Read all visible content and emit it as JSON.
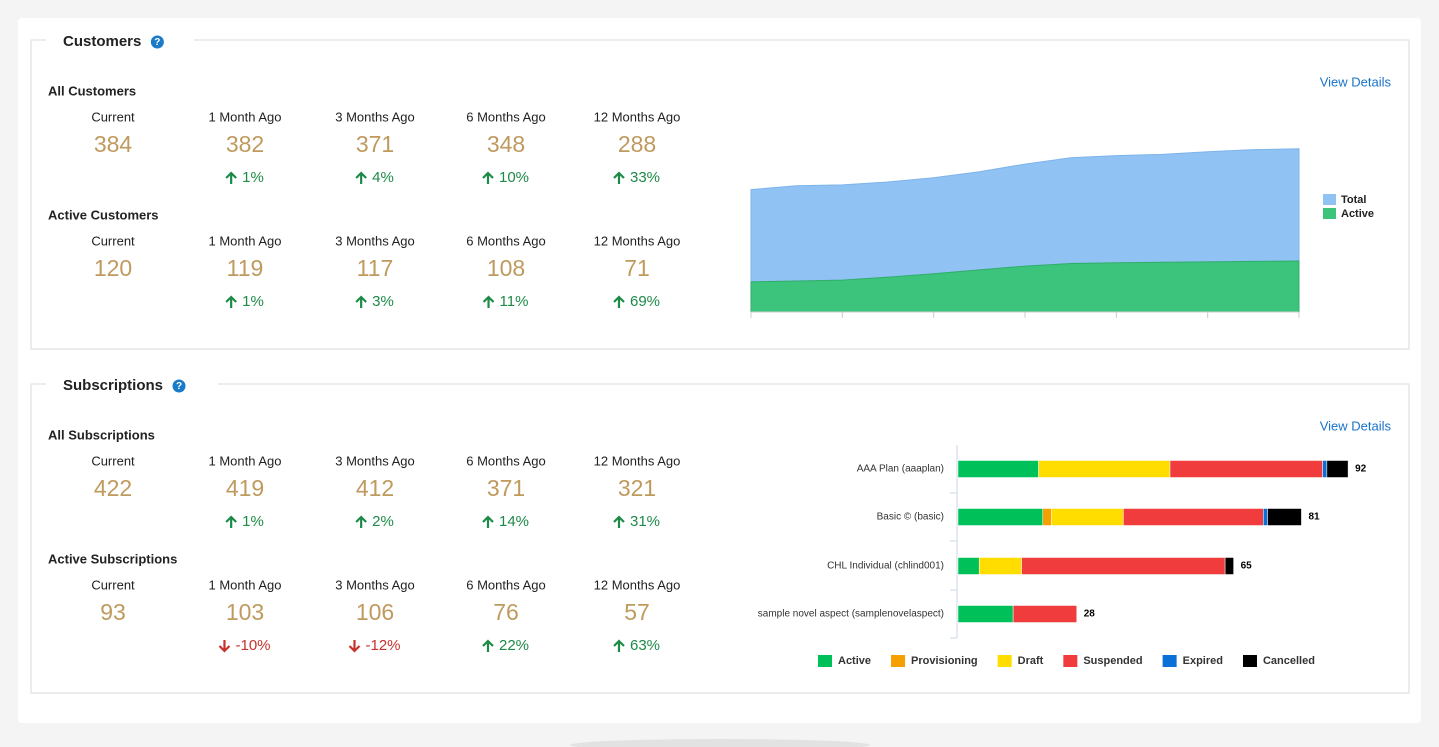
{
  "sections": [
    {
      "title": "Customers",
      "view_details": "View Details",
      "groups": [
        {
          "title": "All Customers",
          "items": [
            {
              "label": "Current",
              "value": 384
            },
            {
              "label": "1 Month Ago",
              "value": 382,
              "change": "1%"
            },
            {
              "label": "3 Months Ago",
              "value": 371,
              "change": "4%"
            },
            {
              "label": "6 Months Ago",
              "value": 348,
              "change": "10%"
            },
            {
              "label": "12 Months Ago",
              "value": 288,
              "change": "33%"
            }
          ]
        },
        {
          "title": "Active Customers",
          "items": [
            {
              "label": "Current",
              "value": 120
            },
            {
              "label": "1 Month Ago",
              "value": 119,
              "change": "1%"
            },
            {
              "label": "3 Months Ago",
              "value": 117,
              "change": "3%"
            },
            {
              "label": "6 Months Ago",
              "value": 108,
              "change": "11%"
            },
            {
              "label": "12 Months Ago",
              "value": 71,
              "change": "69%"
            }
          ]
        }
      ]
    },
    {
      "title": "Subscriptions",
      "view_details": "View Details",
      "groups": [
        {
          "title": "All Subscriptions",
          "items": [
            {
              "label": "Current",
              "value": 422
            },
            {
              "label": "1 Month Ago",
              "value": 419,
              "change": "1%"
            },
            {
              "label": "3 Months Ago",
              "value": 412,
              "change": "2%"
            },
            {
              "label": "6 Months Ago",
              "value": 371,
              "change": "14%"
            },
            {
              "label": "12 Months Ago",
              "value": 321,
              "change": "31%"
            }
          ]
        },
        {
          "title": "Active Subscriptions",
          "items": [
            {
              "label": "Current",
              "value": 93
            },
            {
              "label": "1 Month Ago",
              "value": 103,
              "change": "-10%"
            },
            {
              "label": "3 Months Ago",
              "value": 106,
              "change": "-12%"
            },
            {
              "label": "6 Months Ago",
              "value": 76,
              "change": "22%"
            },
            {
              "label": "12 Months Ago",
              "value": 57,
              "change": "63%"
            }
          ]
        }
      ]
    }
  ],
  "chart_data": [
    {
      "type": "area",
      "categories": [
        null,
        null,
        null,
        null,
        null,
        null,
        null,
        null,
        null,
        null,
        null,
        null,
        null
      ],
      "series": [
        {
          "name": "Total",
          "color": "#90c2f3",
          "values": [
            288,
            297,
            299,
            306,
            316,
            330,
            348,
            363,
            368,
            371,
            377,
            382,
            384
          ]
        },
        {
          "name": "Active",
          "color": "#3cc47c",
          "values": [
            71,
            73,
            75,
            82,
            90,
            99,
            108,
            114,
            116,
            117,
            118,
            119,
            120
          ]
        }
      ],
      "ylim": [
        0,
        400
      ],
      "legend": "right"
    },
    {
      "type": "stacked-bar-horizontal",
      "categories": [
        "AAA Plan (aaaplan)",
        "Basic © (basic)",
        "CHL Individual (chlind001)",
        "sample novel aspect (samplenovelaspect)"
      ],
      "totals": [
        92,
        81,
        65,
        28
      ],
      "series": [
        {
          "name": "Active",
          "color": "#00c05a",
          "values": [
            19,
            20,
            5,
            13
          ]
        },
        {
          "name": "Provisioning",
          "color": "#f5a000",
          "values": [
            0,
            2,
            0,
            0
          ]
        },
        {
          "name": "Draft",
          "color": "#ffdd00",
          "values": [
            31,
            17,
            10,
            0
          ]
        },
        {
          "name": "Suspended",
          "color": "#f03c3c",
          "values": [
            36,
            33,
            48,
            15
          ]
        },
        {
          "name": "Expired",
          "color": "#0a6fd6",
          "values": [
            1,
            1,
            0,
            0
          ]
        },
        {
          "name": "Cancelled",
          "color": "#000000",
          "values": [
            5,
            8,
            2,
            0
          ]
        }
      ],
      "xlim": [
        0,
        100
      ],
      "legend": "bottom"
    }
  ]
}
